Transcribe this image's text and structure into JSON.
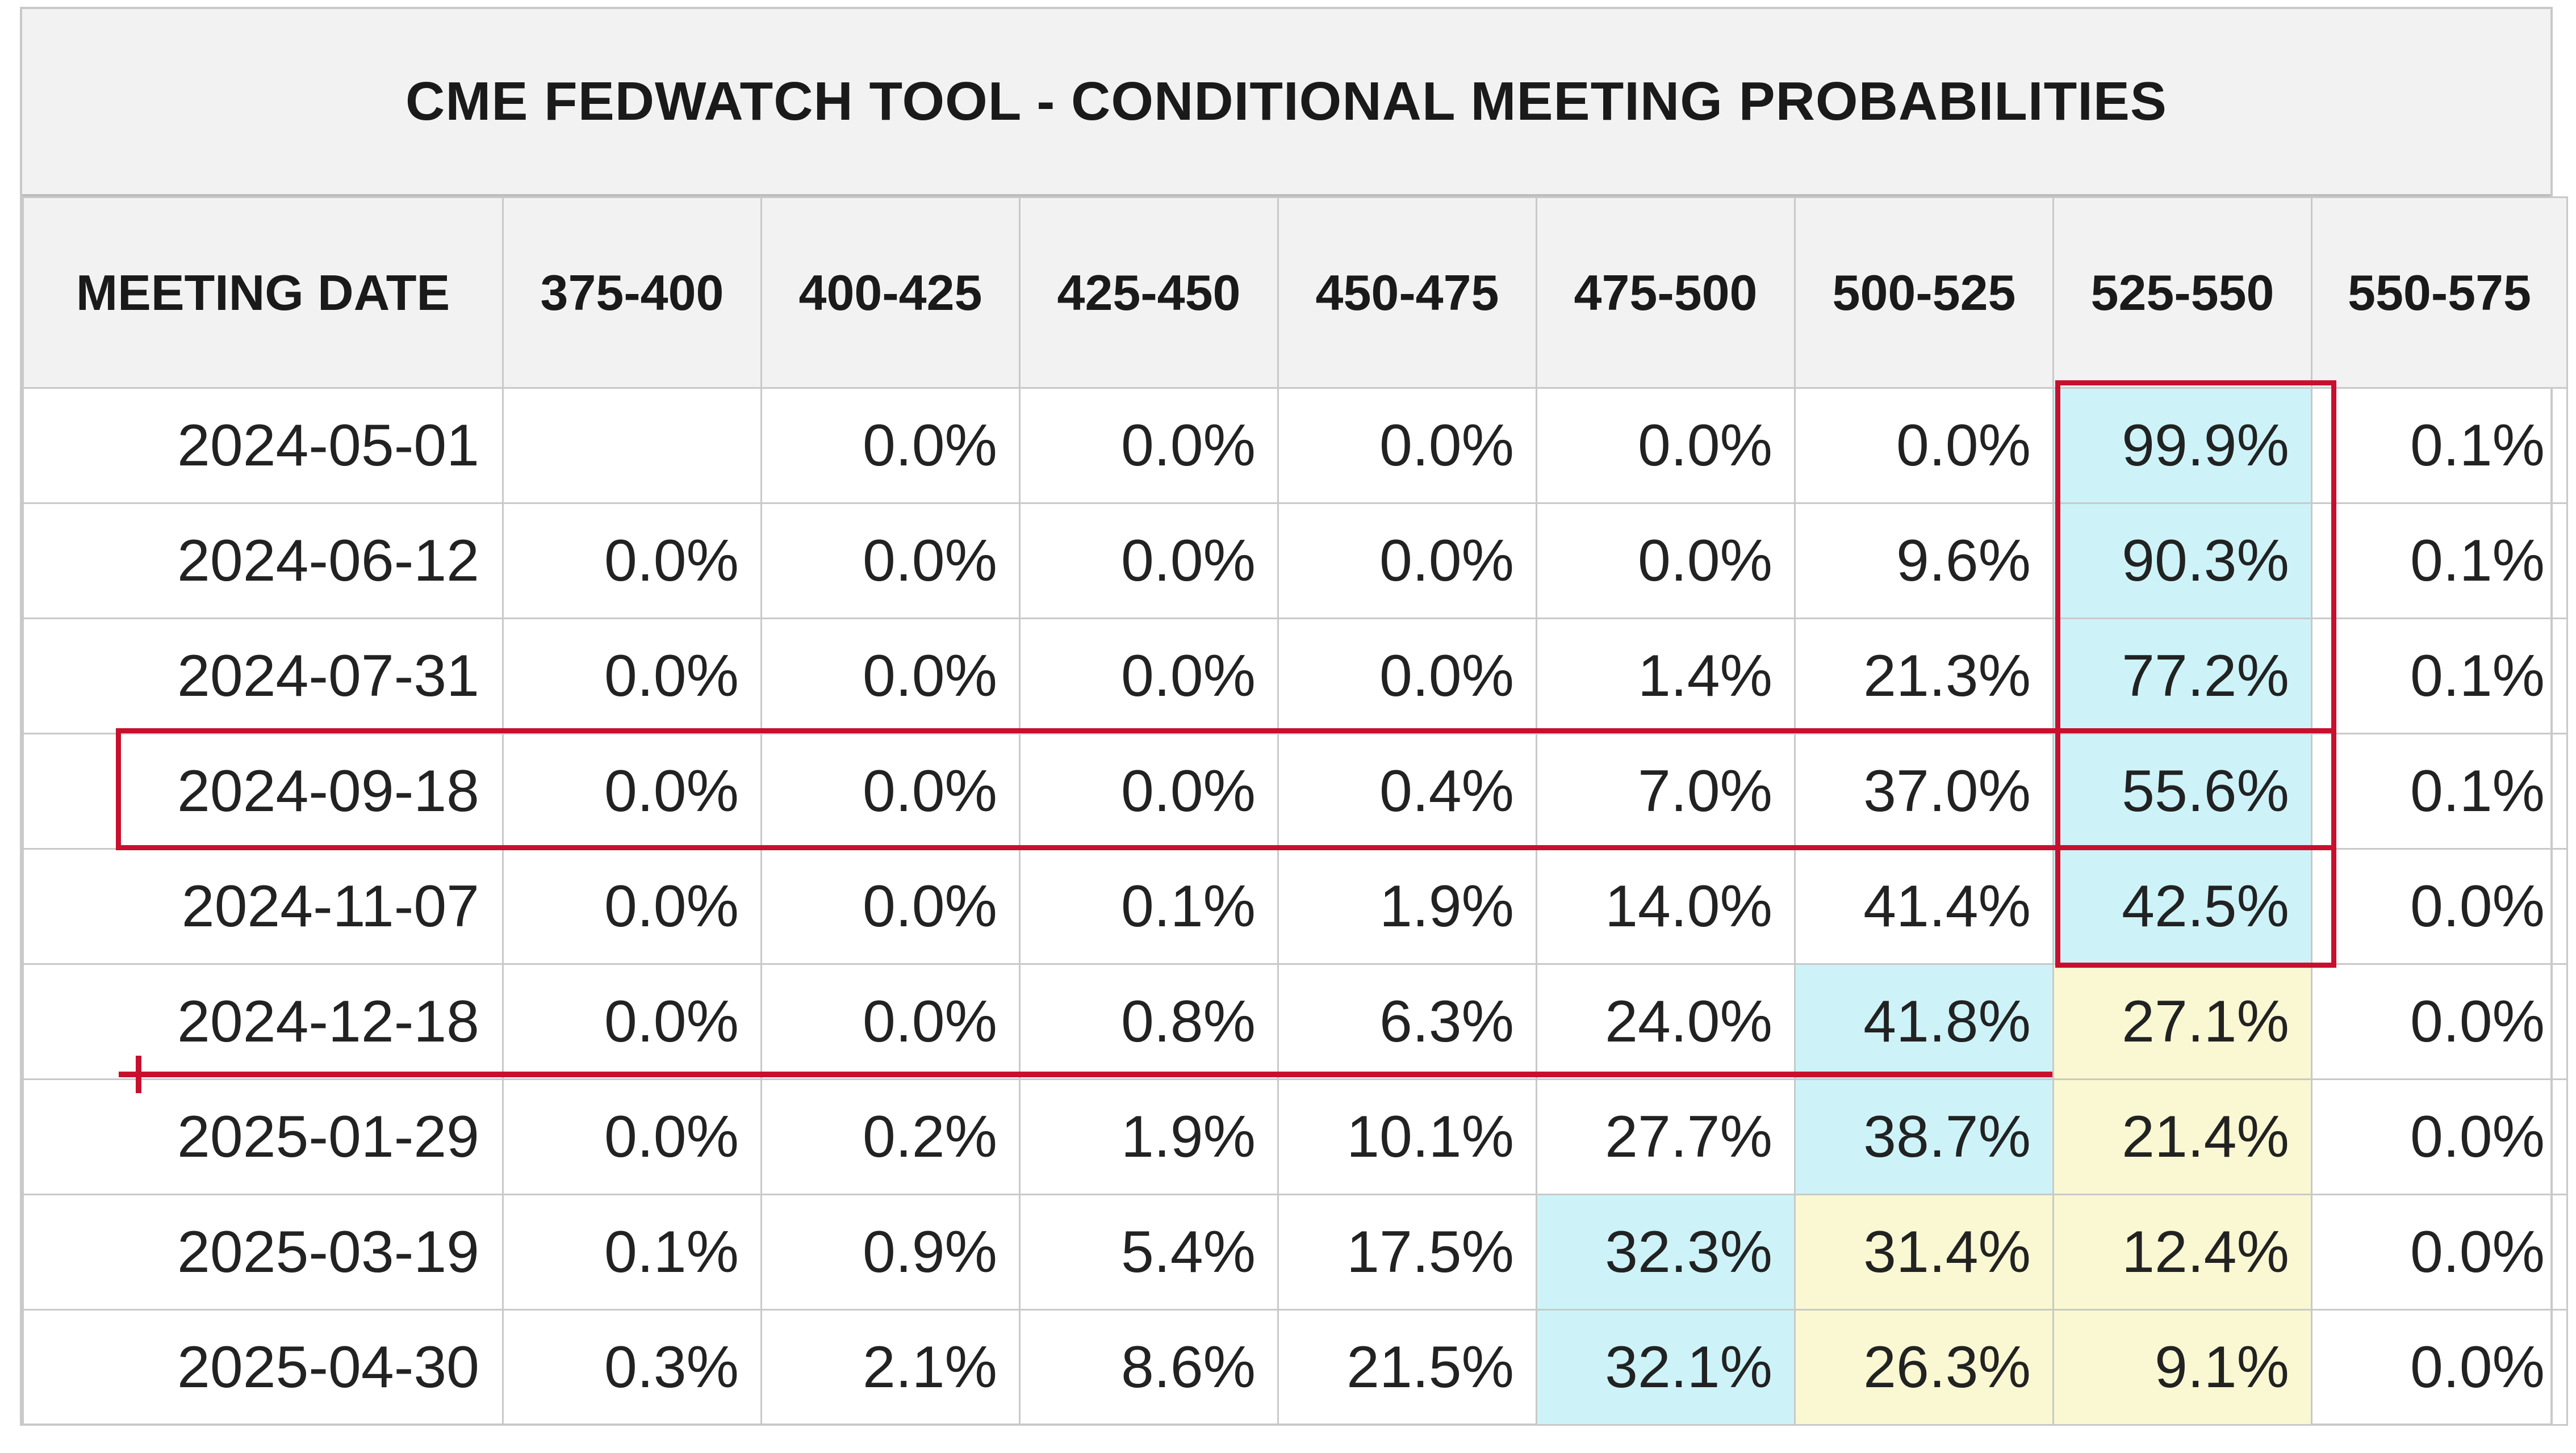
{
  "chart_data": {
    "type": "table",
    "title": "CME FEDWATCH TOOL - CONDITIONAL MEETING PROBABILITIES",
    "columns": [
      "MEETING DATE",
      "375-400",
      "400-425",
      "425-450",
      "450-475",
      "475-500",
      "500-525",
      "525-550",
      "550-575"
    ],
    "rows": [
      {
        "date": "2024-05-01",
        "values": [
          "",
          "0.0%",
          "0.0%",
          "0.0%",
          "0.0%",
          "0.0%",
          "99.9%",
          "0.1%"
        ],
        "highlight": {
          "6": "blue"
        }
      },
      {
        "date": "2024-06-12",
        "values": [
          "0.0%",
          "0.0%",
          "0.0%",
          "0.0%",
          "0.0%",
          "9.6%",
          "90.3%",
          "0.1%"
        ],
        "highlight": {
          "6": "blue"
        }
      },
      {
        "date": "2024-07-31",
        "values": [
          "0.0%",
          "0.0%",
          "0.0%",
          "0.0%",
          "1.4%",
          "21.3%",
          "77.2%",
          "0.1%"
        ],
        "highlight": {
          "6": "blue"
        }
      },
      {
        "date": "2024-09-18",
        "values": [
          "0.0%",
          "0.0%",
          "0.0%",
          "0.4%",
          "7.0%",
          "37.0%",
          "55.6%",
          "0.1%"
        ],
        "highlight": {
          "6": "blue"
        }
      },
      {
        "date": "2024-11-07",
        "values": [
          "0.0%",
          "0.0%",
          "0.1%",
          "1.9%",
          "14.0%",
          "41.4%",
          "42.5%",
          "0.0%"
        ],
        "highlight": {
          "6": "blue"
        }
      },
      {
        "date": "2024-12-18",
        "values": [
          "0.0%",
          "0.0%",
          "0.8%",
          "6.3%",
          "24.0%",
          "41.8%",
          "27.1%",
          "0.0%"
        ],
        "highlight": {
          "5": "blue",
          "6": "yellow"
        }
      },
      {
        "date": "2025-01-29",
        "values": [
          "0.0%",
          "0.2%",
          "1.9%",
          "10.1%",
          "27.7%",
          "38.7%",
          "21.4%",
          "0.0%"
        ],
        "highlight": {
          "5": "blue",
          "6": "yellow"
        }
      },
      {
        "date": "2025-03-19",
        "values": [
          "0.1%",
          "0.9%",
          "5.4%",
          "17.5%",
          "32.3%",
          "31.4%",
          "12.4%",
          "0.0%"
        ],
        "highlight": {
          "4": "blue",
          "5": "yellow",
          "6": "yellow"
        }
      },
      {
        "date": "2025-04-30",
        "values": [
          "0.3%",
          "2.1%",
          "8.6%",
          "21.5%",
          "32.1%",
          "26.3%",
          "9.1%",
          "0.0%"
        ],
        "highlight": {
          "4": "blue",
          "5": "yellow",
          "6": "yellow"
        }
      }
    ],
    "colors": {
      "header_bg": "#f2f2f2",
      "grid": "#c9c9c9",
      "highlight_blue": "#cdf3f8",
      "highlight_yellow": "#f9f8d2",
      "annotation_red": "#c8102e"
    },
    "annotations": [
      {
        "kind": "outline",
        "target": "column 525-550, rows 2024-05-01 to 2024-11-07"
      },
      {
        "kind": "outline",
        "target": "row 2024-09-18"
      },
      {
        "kind": "line",
        "target": "below row 2024-12-18, from MEETING DATE to 500-525"
      }
    ]
  }
}
